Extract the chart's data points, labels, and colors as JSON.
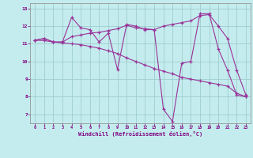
{
  "xlabel": "Windchill (Refroidissement éolien,°C)",
  "x": [
    0,
    1,
    2,
    3,
    4,
    5,
    6,
    7,
    8,
    9,
    10,
    11,
    12,
    13,
    14,
    15,
    16,
    17,
    18,
    19,
    20,
    21,
    22,
    23
  ],
  "line1": [
    11.2,
    11.3,
    11.1,
    11.1,
    12.5,
    11.9,
    11.8,
    11.1,
    11.6,
    9.55,
    12.1,
    12.0,
    11.8,
    11.8,
    7.3,
    6.6,
    9.9,
    10.0,
    12.7,
    12.7,
    10.7,
    9.5,
    8.1,
    8.0
  ],
  "line2": [
    11.2,
    11.3,
    11.1,
    11.1,
    11.4,
    11.5,
    11.6,
    11.65,
    11.75,
    11.85,
    12.05,
    11.9,
    11.85,
    11.8,
    12.0,
    12.1,
    12.2,
    12.3,
    12.6,
    12.65,
    12.0,
    11.3,
    9.5,
    8.1
  ],
  "line3": [
    11.2,
    11.18,
    11.1,
    11.05,
    11.0,
    10.95,
    10.85,
    10.75,
    10.6,
    10.45,
    10.2,
    10.0,
    9.8,
    9.6,
    9.45,
    9.3,
    9.1,
    9.0,
    8.9,
    8.8,
    8.7,
    8.6,
    8.2,
    8.0
  ],
  "ylim": [
    6.5,
    13.3
  ],
  "yticks": [
    7,
    8,
    9,
    10,
    11,
    12,
    13
  ],
  "line_color": "#993399",
  "bg_color": "#c4ecee",
  "grid_color": "#9ecece"
}
